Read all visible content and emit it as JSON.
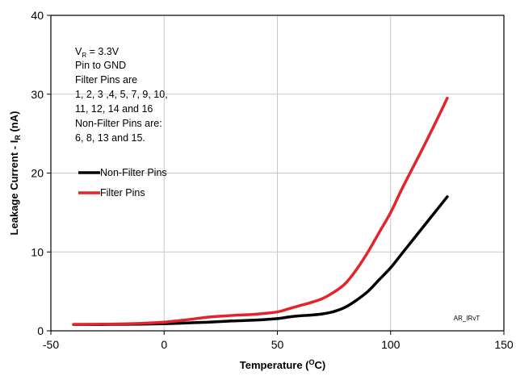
{
  "chart_data": {
    "type": "line",
    "title": "",
    "xlabel": {
      "prefix": "Temperature (",
      "sup": "O",
      "suffix": "C)"
    },
    "ylabel": {
      "prefix": "Leakage Current - I",
      "sub": "R",
      "suffix": " (nA)"
    },
    "xlim": [
      -50,
      150
    ],
    "ylim": [
      0,
      40
    ],
    "xticks": [
      -50,
      0,
      50,
      100,
      150
    ],
    "yticks": [
      0,
      10,
      20,
      30,
      40
    ],
    "grid": true,
    "legend_position": "left",
    "annotation": {
      "line1_prefix": "V",
      "line1_sub": "R",
      "line1_suffix": " = 3.3V",
      "lines": [
        "Pin to GND",
        "Filter Pins are",
        "1, 2, 3 ,4, 5, 7, 9, 10,",
        "11, 12, 14 and 16",
        "Non-Filter Pins are:",
        "6, 8, 13 and 15."
      ]
    },
    "corner_tag": "AR_IRvT",
    "series": [
      {
        "name": "Non-Filter Pins",
        "color": "#000000",
        "x": [
          -40,
          -25,
          -10,
          0,
          10,
          20,
          30,
          40,
          50,
          55,
          60,
          65,
          70,
          75,
          80,
          85,
          90,
          95,
          100,
          105,
          110,
          115,
          120,
          125
        ],
        "y": [
          0.8,
          0.8,
          0.85,
          0.9,
          1.0,
          1.1,
          1.25,
          1.35,
          1.55,
          1.75,
          1.9,
          2.0,
          2.15,
          2.45,
          3.0,
          3.9,
          5.0,
          6.5,
          8.0,
          9.8,
          11.6,
          13.4,
          15.2,
          17.0
        ]
      },
      {
        "name": "Filter Pins",
        "color": "#e3242b",
        "x": [
          -40,
          -25,
          -10,
          0,
          10,
          20,
          30,
          40,
          50,
          55,
          60,
          65,
          70,
          75,
          80,
          85,
          90,
          95,
          100,
          105,
          110,
          115,
          120,
          125
        ],
        "y": [
          0.8,
          0.85,
          0.95,
          1.1,
          1.4,
          1.75,
          1.95,
          2.1,
          2.4,
          2.8,
          3.2,
          3.6,
          4.1,
          4.9,
          6.0,
          7.8,
          10.0,
          12.5,
          15.0,
          18.0,
          20.8,
          23.6,
          26.5,
          29.5
        ]
      }
    ]
  }
}
